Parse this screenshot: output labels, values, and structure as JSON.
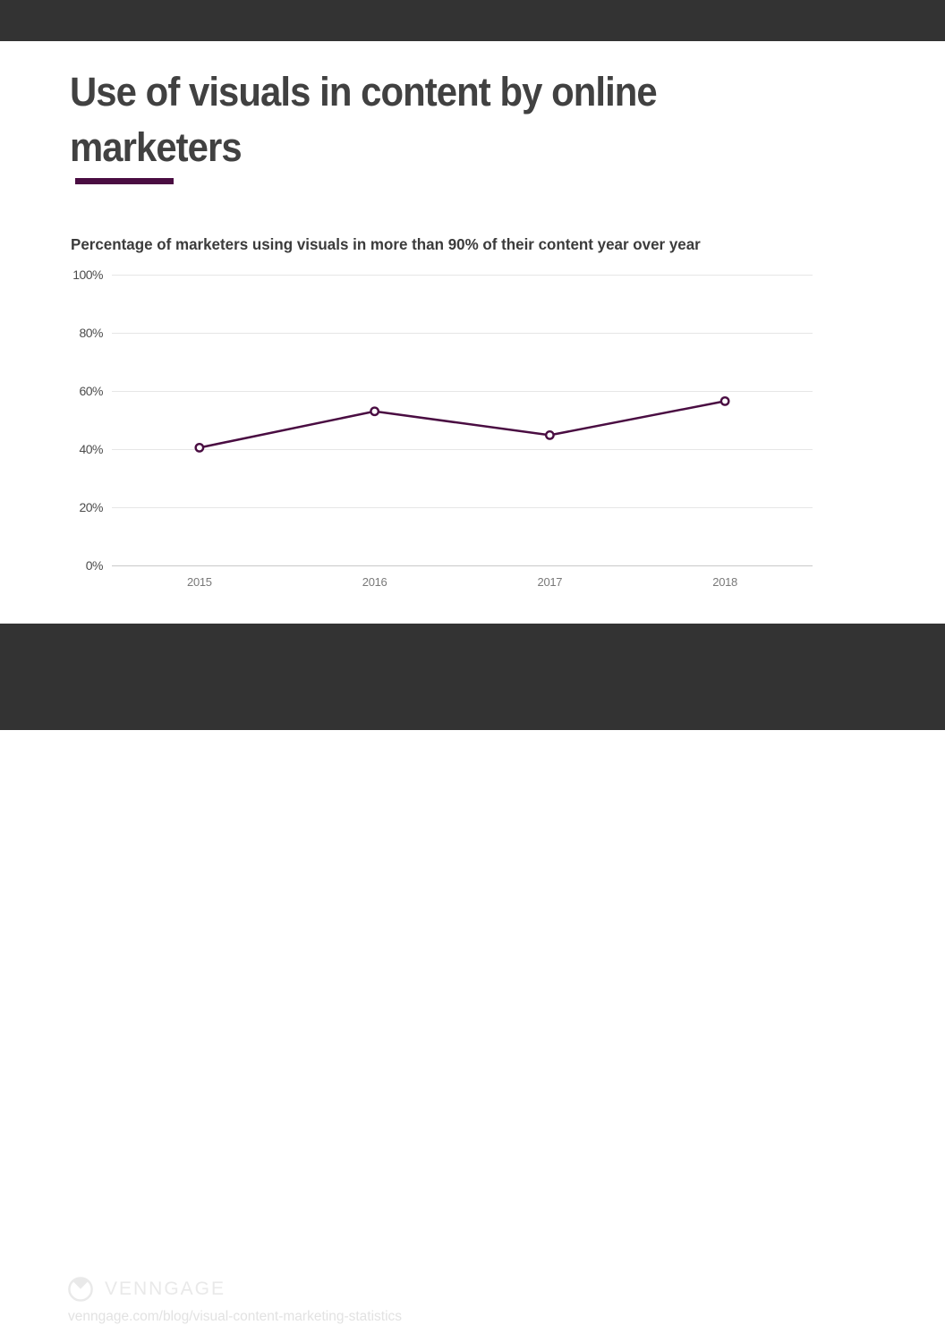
{
  "page": {
    "title": "Use of visuals in content by online marketers",
    "title_lines": [
      "Use of visuals in content by online",
      "marketers"
    ],
    "accent_color": "#4A0D42"
  },
  "chart_data": {
    "type": "line",
    "title": "Percentage of marketers using visuals in more than 90% of their content year over year",
    "categories": [
      "2015",
      "2016",
      "2017",
      "2018"
    ],
    "series": [
      {
        "name": "Marketers using visuals in more than 90% of content",
        "values": [
          40.5,
          53,
          44.8,
          56.5
        ]
      }
    ],
    "ylim": [
      0,
      100
    ],
    "y_ticks": [
      "100%",
      "80%",
      "60%",
      "40%",
      "20%",
      "0%"
    ],
    "grid": true,
    "legend": "none",
    "line_color": "#4A0D42",
    "marker": "open-circle",
    "marker_fill": "#ffffff"
  },
  "footer": {
    "brand": "VENNGAGE",
    "url": "venngage.com/blog/visual-content-marketing-statistics"
  }
}
